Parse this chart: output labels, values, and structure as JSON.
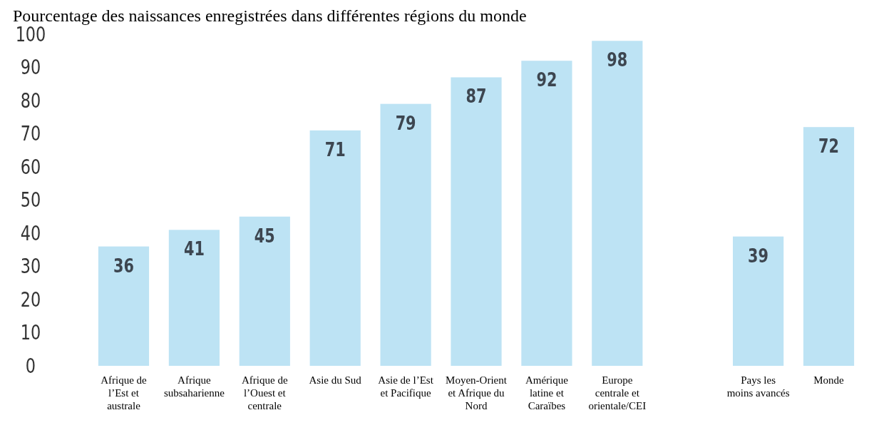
{
  "chart_data": {
    "type": "bar",
    "title": "Pourcentage des naissances enregistrées dans différentes régions du monde",
    "categories": [
      "Afrique de l’Est et australe",
      "Afrique subsaharienne",
      "Afrique de l’Ouest et centrale",
      "Asie du Sud",
      "Asie de l’Est et Pacifique",
      "Moyen-Orient et Afrique du Nord",
      "Amérique latine et Caraïbes",
      "Europe centrale et orientale/CEI",
      null,
      "Pays les moins avancés",
      "Monde"
    ],
    "values": [
      36,
      41,
      45,
      71,
      79,
      87,
      92,
      98,
      null,
      39,
      72
    ],
    "color": "#bde3f4",
    "ylim": [
      0,
      100
    ],
    "yticks": [
      0,
      10,
      20,
      30,
      40,
      50,
      60,
      70,
      80,
      90,
      100
    ],
    "grid": false,
    "data_labels": true
  }
}
